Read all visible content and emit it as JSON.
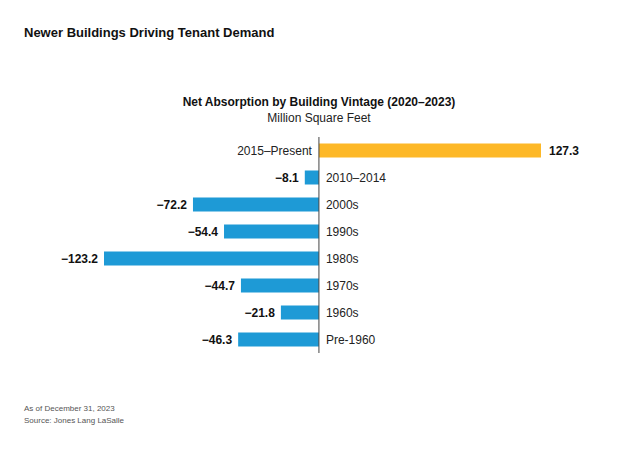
{
  "chart_data": {
    "type": "bar",
    "orientation": "horizontal",
    "title": "Net Absorption by Building Vintage (2020–2023)",
    "subtitle": "Million Square Feet",
    "annotations": [
      "Newer Buildings Driving Tenant Demand",
      "As of December 31, 2023",
      "Source: Jones Lang LaSalle"
    ],
    "categories": [
      "2015–Present",
      "2010–2014",
      "2000s",
      "1990s",
      "1980s",
      "1970s",
      "1960s",
      "Pre-1960"
    ],
    "values": [
      127.3,
      -8.1,
      -72.2,
      -54.4,
      -123.2,
      -44.7,
      -21.8,
      -46.3
    ],
    "value_labels": [
      "127.3",
      "−8.1",
      "−72.2",
      "−54.4",
      "−123.2",
      "−44.7",
      "−21.8",
      "−46.3"
    ],
    "colors": [
      "#fdb827",
      "#1e9ad6",
      "#1e9ad6",
      "#1e9ad6",
      "#1e9ad6",
      "#1e9ad6",
      "#1e9ad6",
      "#1e9ad6"
    ],
    "xlim": [
      -123.2,
      127.3
    ],
    "data_labels": true,
    "tick_labels": "y",
    "grid": false
  }
}
